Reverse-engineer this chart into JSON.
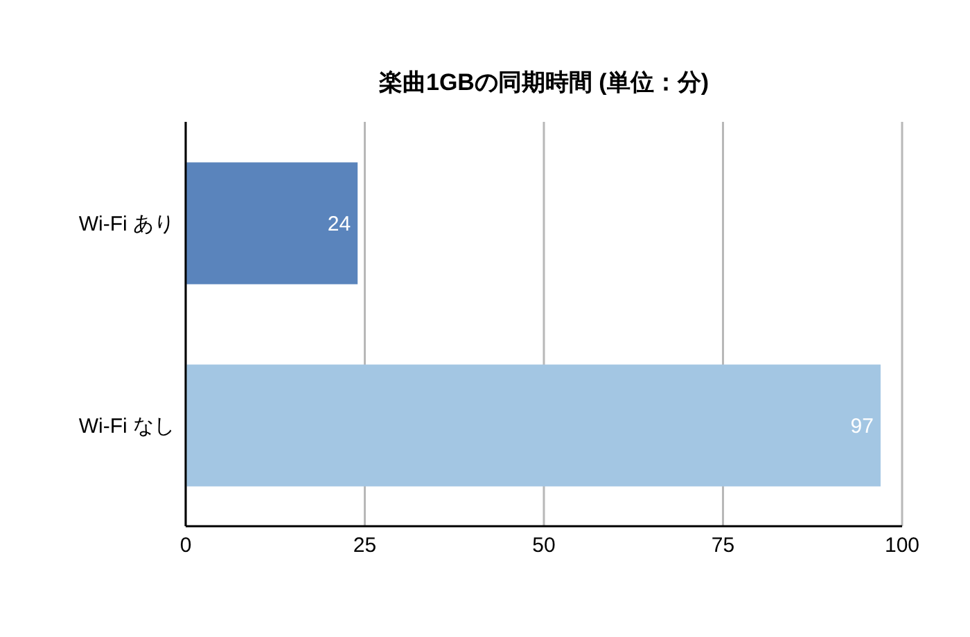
{
  "chart_data": {
    "type": "bar",
    "orientation": "horizontal",
    "title": "楽曲1GBの同期時間 (単位：分)",
    "categories": [
      "Wi-Fi あり",
      "Wi-Fi なし"
    ],
    "values": [
      24,
      97
    ],
    "colors": [
      "#5a84bc",
      "#a3c6e3"
    ],
    "xlim": [
      0,
      100
    ],
    "xticks": [
      0,
      25,
      50,
      75,
      100
    ],
    "grid": "x",
    "data_labels": true
  }
}
